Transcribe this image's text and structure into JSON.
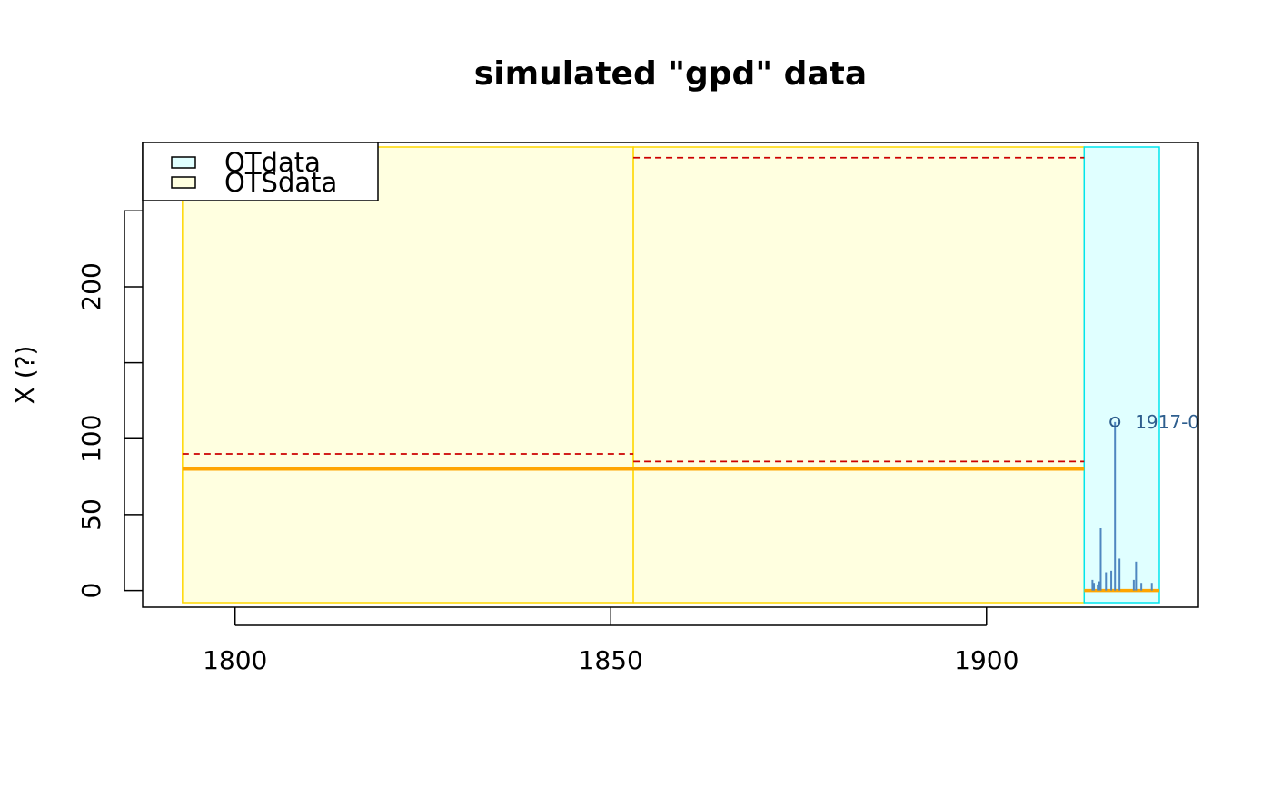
{
  "chart_data": {
    "type": "line",
    "title": "simulated \"gpd\" data",
    "xlabel": "",
    "ylabel": "X (?)",
    "xlim": [
      1787.7,
      1928.2
    ],
    "ylim": [
      -11,
      295
    ],
    "x_ticks": [
      1800,
      1850,
      1900
    ],
    "y_ticks_labeled": [
      0,
      50,
      100,
      200
    ],
    "y_ticks_all": [
      0,
      50,
      100,
      150,
      200,
      250
    ],
    "grid": false,
    "legend": {
      "position": "top-left",
      "entries": [
        {
          "label": "OTdata",
          "fill": "#E0FFFF",
          "border": "#000000"
        },
        {
          "label": "OTSdata",
          "fill": "#FFFFE0",
          "border": "#000000"
        }
      ]
    },
    "blocks": [
      {
        "name": "OTSdata",
        "start": 1793,
        "end": 1853,
        "fill": "#FFFFE0",
        "border": "#FFD700",
        "threshold": 80,
        "max_level": 90
      },
      {
        "name": "OTSdata",
        "start": 1853,
        "end": 1913,
        "fill": "#FFFFE0",
        "border": "#FFD700",
        "threshold": 80,
        "max_level": 85,
        "upper_level": 285
      },
      {
        "name": "OTdata",
        "start": 1913,
        "end": 1923,
        "fill": "#E0FFFF",
        "border": "#00E5EE",
        "threshold": 0
      }
    ],
    "ot_events": [
      {
        "x": 1914.1,
        "y": 7
      },
      {
        "x": 1914.3,
        "y": 5
      },
      {
        "x": 1914.8,
        "y": 4
      },
      {
        "x": 1915.0,
        "y": 6
      },
      {
        "x": 1915.2,
        "y": 41
      },
      {
        "x": 1915.9,
        "y": 12
      },
      {
        "x": 1916.6,
        "y": 13
      },
      {
        "x": 1917.1,
        "y": 111
      },
      {
        "x": 1917.7,
        "y": 21
      },
      {
        "x": 1919.6,
        "y": 7
      },
      {
        "x": 1919.9,
        "y": 19
      },
      {
        "x": 1920.6,
        "y": 5
      },
      {
        "x": 1922.0,
        "y": 5
      }
    ],
    "annotations": [
      {
        "text": "1917-0",
        "x": 1917.1,
        "y": 111
      }
    ],
    "colors": {
      "threshold": "#FFA500",
      "max_level": "#CC0000",
      "events": "#4F87C0",
      "annotation": "#2E5E8E",
      "ots_border": "#FFD700",
      "ot_border": "#00E5EE"
    }
  }
}
